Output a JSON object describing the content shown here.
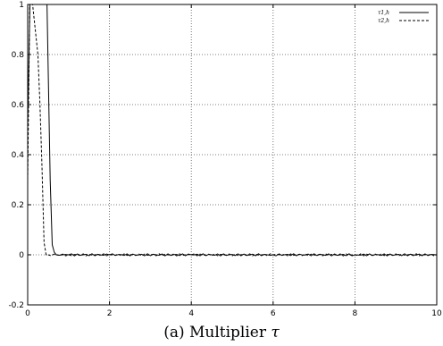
{
  "chart_data": {
    "type": "line",
    "title": "",
    "xlabel": "",
    "ylabel": "",
    "xlim": [
      0,
      10
    ],
    "ylim": [
      -0.2,
      1
    ],
    "x_ticks": [
      "0",
      "2",
      "4",
      "6",
      "8",
      "10"
    ],
    "y_ticks": [
      "-0.2",
      "0",
      "0.2",
      "0.4",
      "0.6",
      "0.8",
      "1"
    ],
    "grid": true,
    "legend_position": "top-right",
    "series": [
      {
        "name": "τ1,h",
        "style": "solid",
        "color": "#000000",
        "x": [
          0.0,
          0.06,
          0.1,
          0.45,
          0.55,
          0.6,
          0.65,
          0.7,
          1.0,
          2.0,
          4.0,
          6.0,
          8.0,
          10.0
        ],
        "y": [
          0.5,
          1.05,
          1.2,
          1.2,
          0.3,
          0.04,
          0.01,
          0.0,
          0.0,
          0.0,
          0.0,
          0.0,
          0.0,
          0.0
        ]
      },
      {
        "name": "τ2,h",
        "style": "dashed",
        "color": "#000000",
        "x": [
          0.0,
          0.05,
          0.08,
          0.12,
          0.25,
          0.3,
          0.35,
          0.4,
          0.45,
          0.5,
          1.0,
          2.0,
          4.0,
          6.0,
          8.0,
          10.0
        ],
        "y": [
          0.3,
          1.0,
          1.1,
          1.0,
          0.8,
          0.6,
          0.35,
          0.05,
          0.0,
          0.0,
          0.0,
          0.0,
          0.0,
          0.0,
          0.0,
          0.0
        ]
      }
    ]
  },
  "caption": {
    "prefix": "(a) Multiplier ",
    "symbol": "τ"
  },
  "legend": {
    "items": [
      "τ1,h",
      "τ2,h"
    ]
  }
}
